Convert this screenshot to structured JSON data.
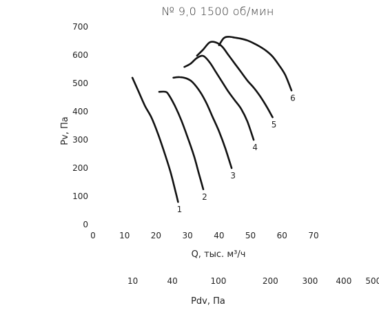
{
  "chart_data": {
    "type": "line",
    "title": "№ 9,0 1500 об/мин",
    "xlabel": "Q, тыс. м³/ч",
    "ylabel": "Pv, Па",
    "xlim": [
      0,
      70
    ],
    "ylim": [
      0,
      700
    ],
    "x_ticks": [
      0,
      10,
      20,
      30,
      40,
      50,
      60,
      70
    ],
    "y_ticks": [
      0,
      100,
      200,
      300,
      400,
      500,
      600,
      700
    ],
    "grid": false,
    "secondary_axis": {
      "label": "Pdv, Па",
      "ticks": [
        {
          "label": "10",
          "q": 12.6
        },
        {
          "label": "40",
          "q": 25.2
        },
        {
          "label": "100",
          "q": 39.8
        },
        {
          "label": "200",
          "q": 56.3
        },
        {
          "label": "300",
          "q": 68.9
        },
        {
          "label": "400",
          "q": 79.6
        },
        {
          "label": "500",
          "q": 89.0
        }
      ]
    },
    "series": [
      {
        "name": "1",
        "points": [
          [
            12.5,
            520
          ],
          [
            14.5,
            470
          ],
          [
            16.5,
            420
          ],
          [
            18.5,
            380
          ],
          [
            20.5,
            325
          ],
          [
            22.5,
            260
          ],
          [
            24.5,
            190
          ],
          [
            26,
            125
          ],
          [
            27,
            80
          ]
        ]
      },
      {
        "name": "2",
        "points": [
          [
            21,
            470
          ],
          [
            23,
            470
          ],
          [
            24,
            460
          ],
          [
            26,
            420
          ],
          [
            28,
            370
          ],
          [
            30,
            310
          ],
          [
            32,
            245
          ],
          [
            33.5,
            185
          ],
          [
            35,
            125
          ]
        ]
      },
      {
        "name": "3",
        "points": [
          [
            25.5,
            520
          ],
          [
            27.5,
            522
          ],
          [
            29.5,
            518
          ],
          [
            31.5,
            505
          ],
          [
            34,
            470
          ],
          [
            36,
            430
          ],
          [
            38,
            380
          ],
          [
            40,
            330
          ],
          [
            42,
            270
          ],
          [
            44,
            200
          ]
        ]
      },
      {
        "name": "4",
        "points": [
          [
            29,
            558
          ],
          [
            31,
            570
          ],
          [
            33,
            590
          ],
          [
            35,
            597
          ],
          [
            37,
            575
          ],
          [
            39,
            540
          ],
          [
            41,
            505
          ],
          [
            43,
            470
          ],
          [
            45,
            440
          ],
          [
            47,
            410
          ],
          [
            49,
            365
          ],
          [
            51,
            300
          ]
        ]
      },
      {
        "name": "5",
        "points": [
          [
            33,
            598
          ],
          [
            35,
            620
          ],
          [
            37,
            645
          ],
          [
            39,
            645
          ],
          [
            41,
            630
          ],
          [
            43,
            600
          ],
          [
            45,
            570
          ],
          [
            47,
            540
          ],
          [
            49,
            510
          ],
          [
            51,
            485
          ],
          [
            53,
            455
          ],
          [
            55,
            420
          ],
          [
            57,
            380
          ]
        ]
      },
      {
        "name": "6",
        "points": [
          [
            40,
            635
          ],
          [
            41.5,
            660
          ],
          [
            43,
            665
          ],
          [
            45,
            662
          ],
          [
            47,
            658
          ],
          [
            49,
            652
          ],
          [
            51,
            642
          ],
          [
            53,
            630
          ],
          [
            55,
            615
          ],
          [
            57,
            595
          ],
          [
            59,
            565
          ],
          [
            61,
            530
          ],
          [
            63,
            475
          ]
        ]
      }
    ]
  }
}
